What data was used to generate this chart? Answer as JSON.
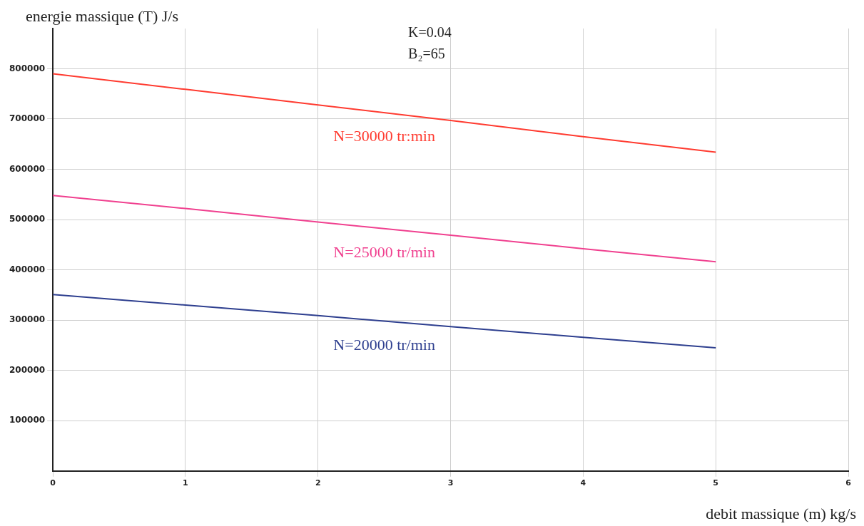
{
  "chart_data": {
    "type": "line",
    "xlabel": "debit massique (m) kg/s",
    "ylabel": "energie massique (T) J/s",
    "x": [
      0,
      1,
      2,
      3,
      4,
      5
    ],
    "series": [
      {
        "name": "N=30000 tr:min",
        "color": "#ff3b30",
        "values": [
          790000,
          759000,
          728000,
          697000,
          665000,
          634000
        ]
      },
      {
        "name": "N=25000 tr/min",
        "color": "#f0408f",
        "values": [
          548000,
          522000,
          495000,
          469000,
          442000,
          416000
        ]
      },
      {
        "name": "N=20000 tr/min",
        "color": "#2e3f8f",
        "values": [
          351000,
          330000,
          309000,
          287000,
          266000,
          245000
        ]
      }
    ],
    "xlim": [
      0,
      6
    ],
    "xticks": [
      0,
      1,
      2,
      3,
      4,
      5,
      6
    ],
    "ylim": [
      0,
      880000
    ],
    "yticks": [
      100000,
      200000,
      300000,
      400000,
      500000,
      600000,
      700000,
      800000
    ],
    "grid": true,
    "legend": false,
    "marker": "none",
    "line_style": "solid",
    "annotations": [
      "K=0.04",
      "B₂=65"
    ]
  }
}
